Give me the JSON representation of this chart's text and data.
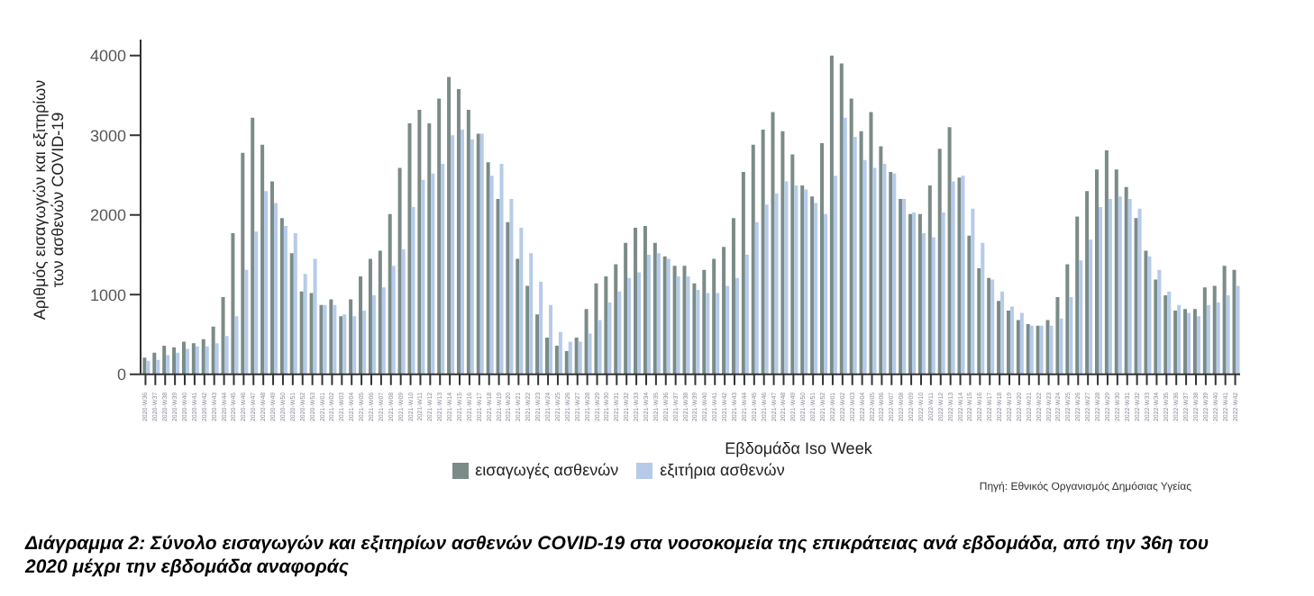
{
  "chart_data": {
    "type": "bar",
    "title": "Διάγραμμα 2: Σύνολο εισαγωγών και εξιτηρίων ασθενών COVID-19 στα νοσοκομεία της επικράτειας ανά εβδομάδα, από την 36η του 2020 μέχρι την εβδομάδα αναφοράς",
    "xlabel": "Εβδομάδα Iso Week",
    "ylabel": "Αριθμός εισαγωγών και εξιτηρίων των ασθενών COVID-19",
    "annotations": [
      "Πηγή: Εθνικός Οργανισμός Δημόσιας Υγείας"
    ],
    "categories": [
      "2020-W36",
      "2020-W37",
      "2020-W38",
      "2020-W39",
      "2020-W40",
      "2020-W41",
      "2020-W42",
      "2020-W43",
      "2020-W44",
      "2020-W45",
      "2020-W46",
      "2020-W47",
      "2020-W48",
      "2020-W49",
      "2020-W50",
      "2020-W51",
      "2020-W52",
      "2020-W53",
      "2021-W01",
      "2021-W02",
      "2021-W03",
      "2021-W04",
      "2021-W05",
      "2021-W06",
      "2021-W07",
      "2021-W08",
      "2021-W09",
      "2021-W10",
      "2021-W11",
      "2021-W12",
      "2021-W13",
      "2021-W14",
      "2021-W15",
      "2021-W16",
      "2021-W17",
      "2021-W18",
      "2021-W19",
      "2021-W20",
      "2021-W21",
      "2021-W22",
      "2021-W23",
      "2021-W24",
      "2021-W25",
      "2021-W26",
      "2021-W27",
      "2021-W28",
      "2021-W29",
      "2021-W30",
      "2021-W31",
      "2021-W32",
      "2021-W33",
      "2021-W34",
      "2021-W35",
      "2021-W36",
      "2021-W37",
      "2021-W38",
      "2021-W39",
      "2021-W40",
      "2021-W41",
      "2021-W42",
      "2021-W43",
      "2021-W44",
      "2021-W45",
      "2021-W46",
      "2021-W47",
      "2021-W48",
      "2021-W49",
      "2021-W50",
      "2021-W51",
      "2021-W52",
      "2022-W01",
      "2022-W02",
      "2022-W03",
      "2022-W04",
      "2022-W05",
      "2022-W06",
      "2022-W07",
      "2022-W08",
      "2022-W09",
      "2022-W10",
      "2022-W11",
      "2022-W12",
      "2022-W13",
      "2022-W14",
      "2022-W15",
      "2022-W16",
      "2022-W17",
      "2022-W18",
      "2022-W19",
      "2022-W20",
      "2022-W21",
      "2022-W22",
      "2022-W23",
      "2022-W24",
      "2022-W25",
      "2022-W26",
      "2022-W27",
      "2022-W28",
      "2022-W29",
      "2022-W30",
      "2022-W31",
      "2022-W32",
      "2022-W33",
      "2022-W34",
      "2022-W35",
      "2022-W36",
      "2022-W37",
      "2022-W38",
      "2022-W39",
      "2022-W40",
      "2022-W41",
      "2022-W42"
    ],
    "series": [
      {
        "name": "εισαγωγές ασθενών",
        "color": "#7b8b88",
        "values": [
          210,
          270,
          360,
          340,
          410,
          390,
          440,
          600,
          970,
          1770,
          2780,
          3220,
          2880,
          2420,
          1960,
          1520,
          1040,
          1020,
          870,
          940,
          730,
          940,
          1230,
          1450,
          1550,
          2010,
          2590,
          3150,
          3320,
          3150,
          3460,
          3730,
          3580,
          3320,
          3020,
          2660,
          2200,
          1910,
          1450,
          1110,
          750,
          460,
          360,
          290,
          460,
          820,
          1140,
          1230,
          1380,
          1650,
          1840,
          1860,
          1650,
          1480,
          1360,
          1360,
          1140,
          1310,
          1450,
          1600,
          1960,
          2540,
          2880,
          3070,
          3290,
          3050,
          2760,
          2370,
          2230,
          2900,
          4000,
          3900,
          3460,
          3050,
          3290,
          2860,
          2540,
          2200,
          2010,
          2010,
          2370,
          2830,
          3100,
          2470,
          1740,
          1330,
          1210,
          920,
          800,
          680,
          630,
          610,
          680,
          970,
          1380,
          1980,
          2300,
          2570,
          2810,
          2570,
          2350,
          1960,
          1550,
          1190,
          990,
          800,
          820,
          820,
          1090,
          1110,
          1360,
          1310
        ]
      },
      {
        "name": "εξιτήρια ασθενών",
        "color": "#b5cbe9",
        "values": [
          170,
          180,
          240,
          270,
          320,
          350,
          350,
          390,
          480,
          730,
          1310,
          1790,
          2300,
          2150,
          1860,
          1770,
          1260,
          1450,
          870,
          870,
          750,
          730,
          800,
          990,
          1090,
          1360,
          1570,
          2100,
          2440,
          2520,
          2640,
          3000,
          3070,
          2950,
          3020,
          2490,
          2640,
          2200,
          1840,
          1520,
          1160,
          870,
          530,
          410,
          410,
          510,
          680,
          900,
          1040,
          1210,
          1280,
          1500,
          1520,
          1450,
          1230,
          1230,
          1060,
          1020,
          1020,
          1110,
          1210,
          1500,
          1910,
          2130,
          2270,
          2420,
          2370,
          2320,
          2150,
          2010,
          2490,
          3220,
          2980,
          2690,
          2590,
          2640,
          2520,
          2200,
          2030,
          1770,
          1720,
          2030,
          2420,
          2490,
          2080,
          1650,
          1190,
          1040,
          850,
          770,
          610,
          610,
          610,
          700,
          970,
          1430,
          1690,
          2100,
          2200,
          2230,
          2200,
          2080,
          1480,
          1310,
          1040,
          870,
          770,
          730,
          870,
          900,
          990,
          1110
        ]
      }
    ],
    "ylim": [
      0,
      4200
    ],
    "yticks": [
      0,
      1000,
      2000,
      3000,
      4000
    ],
    "legend": "bottom"
  }
}
